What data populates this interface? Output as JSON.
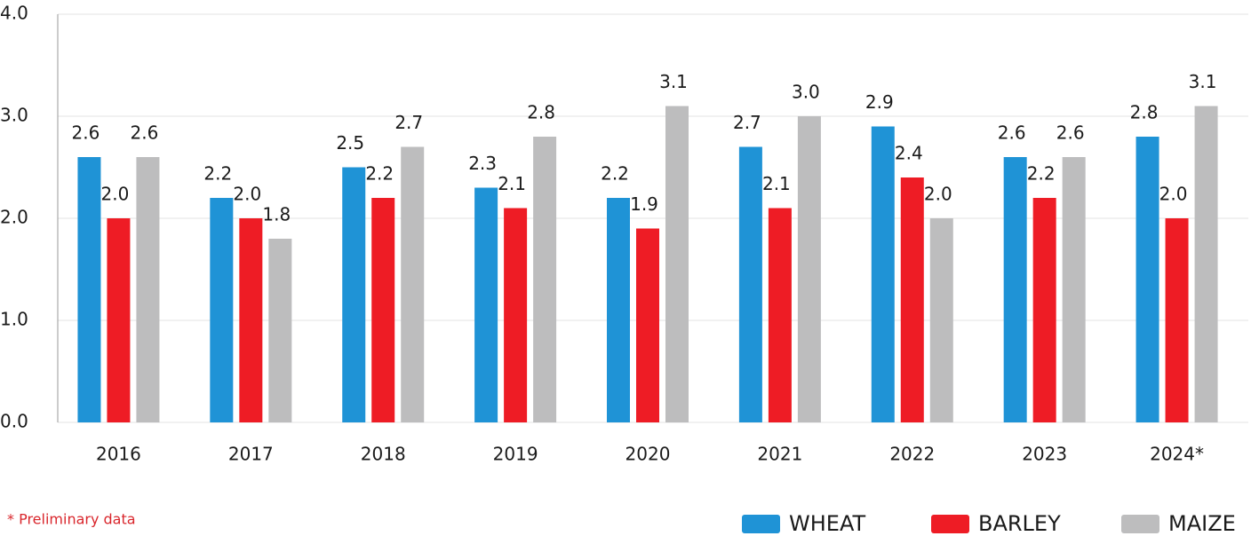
{
  "chart_data": {
    "type": "bar",
    "categories": [
      "2016",
      "2017",
      "2018",
      "2019",
      "2020",
      "2021",
      "2022",
      "2023",
      "2024*"
    ],
    "series": [
      {
        "name": "WHEAT",
        "color": "#1f93d6",
        "values": [
          2.6,
          2.2,
          2.5,
          2.3,
          2.2,
          2.7,
          2.9,
          2.6,
          2.8
        ],
        "value_labels": [
          "2.6",
          "2.2",
          "2.5",
          "2.3",
          "2.2",
          "2.7",
          "2.9",
          "2.6",
          "2.8"
        ]
      },
      {
        "name": "BARLEY",
        "color": "#ee1c25",
        "values": [
          2.0,
          2.0,
          2.2,
          2.1,
          1.9,
          2.1,
          2.4,
          2.2,
          2.0
        ],
        "value_labels": [
          "2.0",
          "2.0",
          "2.2",
          "2.1",
          "1.9",
          "2.1",
          "2.4",
          "2.2",
          "2.0"
        ]
      },
      {
        "name": "MAIZE",
        "color": "#bdbdbe",
        "values": [
          2.6,
          1.8,
          2.7,
          2.8,
          3.1,
          3.0,
          2.0,
          2.6,
          3.1
        ],
        "value_labels": [
          "2.6",
          "1.8",
          "2.7",
          "2.8",
          "3.1",
          "3.0",
          "2.0",
          "2.6",
          "3.1"
        ]
      }
    ],
    "ylim": [
      0,
      4
    ],
    "yticks": [
      {
        "value": 0,
        "label": "0.0"
      },
      {
        "value": 1,
        "label": "1.0"
      },
      {
        "value": 2,
        "label": "2.0"
      },
      {
        "value": 3,
        "label": "3.0"
      },
      {
        "value": 4,
        "label": "4.0"
      }
    ],
    "grid": true,
    "legend": "bottom-right",
    "note": "* Preliminary data"
  }
}
